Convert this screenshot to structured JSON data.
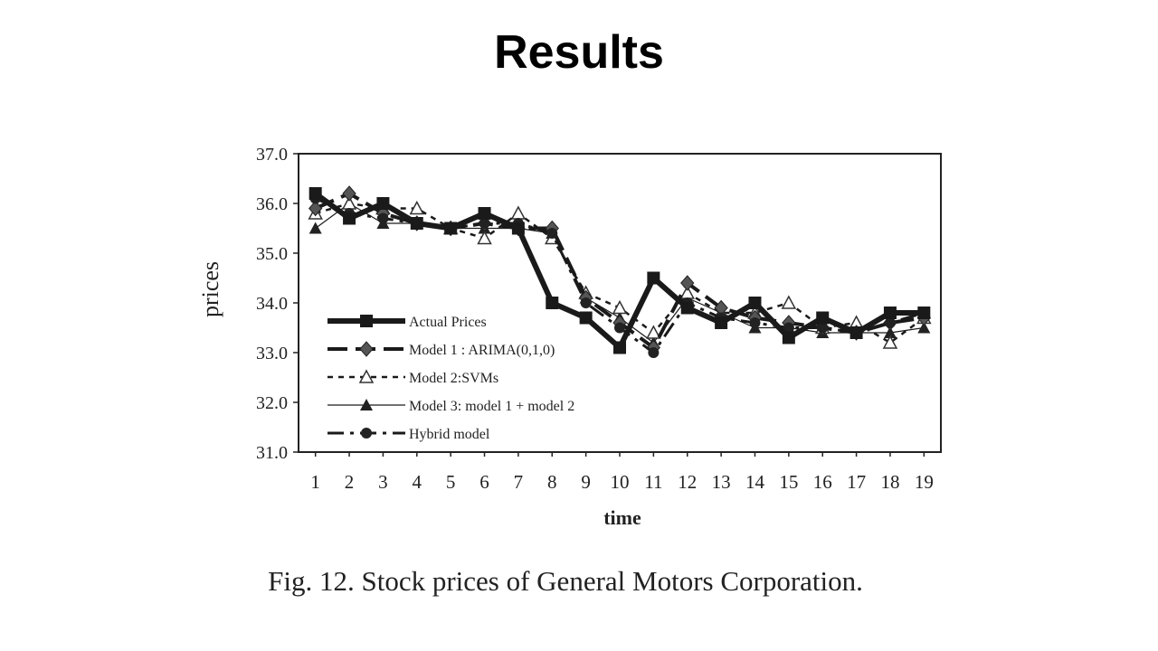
{
  "slide": {
    "title": "Results",
    "caption": "Fig. 12. Stock prices of General Motors Corporation."
  },
  "chart_data": {
    "type": "line",
    "xlabel": "time",
    "ylabel": "prices",
    "x": [
      1,
      2,
      3,
      4,
      5,
      6,
      7,
      8,
      9,
      10,
      11,
      12,
      13,
      14,
      15,
      16,
      17,
      18,
      19
    ],
    "ylim": [
      31.0,
      37.0
    ],
    "yticks": [
      "31.0",
      "32.0",
      "33.0",
      "34.0",
      "35.0",
      "36.0",
      "37.0"
    ],
    "grid": false,
    "legend_position": "bottom-left",
    "series": [
      {
        "name": "Actual Prices",
        "style": "thick-solid",
        "marker": "square",
        "values": [
          36.2,
          35.7,
          36.0,
          35.6,
          35.5,
          35.8,
          35.5,
          34.0,
          33.7,
          33.1,
          34.5,
          33.9,
          33.6,
          34.0,
          33.3,
          33.7,
          33.4,
          33.8,
          33.8
        ]
      },
      {
        "name": "Model 1 : ARIMA(0,1,0)",
        "style": "long-dash",
        "marker": "diamond",
        "values": [
          35.9,
          36.2,
          35.8,
          35.6,
          35.5,
          35.6,
          35.5,
          35.5,
          34.1,
          33.6,
          33.1,
          34.4,
          33.9,
          33.7,
          33.6,
          33.5,
          33.4,
          33.6,
          33.7
        ]
      },
      {
        "name": "Model 2:SVMs",
        "style": "short-dash",
        "marker": "triangle-open",
        "values": [
          35.8,
          36.0,
          35.9,
          35.9,
          35.5,
          35.3,
          35.8,
          35.3,
          34.2,
          33.9,
          33.4,
          34.2,
          33.8,
          33.8,
          34.0,
          33.5,
          33.6,
          33.2,
          33.7
        ]
      },
      {
        "name": "Model 3: model 1 + model 2",
        "style": "thin-solid",
        "marker": "triangle",
        "values": [
          35.5,
          36.0,
          35.6,
          35.6,
          35.5,
          35.5,
          35.5,
          35.4,
          34.1,
          33.7,
          33.2,
          34.1,
          33.8,
          33.5,
          33.5,
          33.4,
          33.4,
          33.4,
          33.5
        ]
      },
      {
        "name": "Hybrid model",
        "style": "dash-dot",
        "marker": "circle",
        "values": [
          36.1,
          35.8,
          35.7,
          35.6,
          35.5,
          35.6,
          35.6,
          35.4,
          34.0,
          33.5,
          33.0,
          34.0,
          33.7,
          33.6,
          33.5,
          33.5,
          33.4,
          33.6,
          33.8
        ]
      }
    ]
  }
}
